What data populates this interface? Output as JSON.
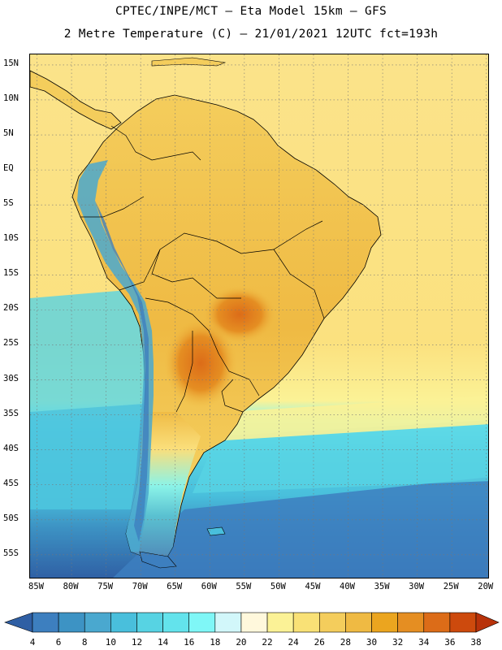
{
  "header": {
    "line1": "CPTEC/INPE/MCT –  Eta Model 15km – GFS",
    "line2": "2 Metre Temperature (C) – 21/01/2021 12UTC fct=193h"
  },
  "map": {
    "lat_labels": [
      "15N",
      "10N",
      "5N",
      "EQ",
      "5S",
      "10S",
      "15S",
      "20S",
      "25S",
      "30S",
      "35S",
      "40S",
      "45S",
      "50S",
      "55S"
    ],
    "lon_labels": [
      "85W",
      "80W",
      "75W",
      "70W",
      "65W",
      "60W",
      "55W",
      "50W",
      "45W",
      "40W",
      "35W",
      "30W",
      "25W",
      "20W"
    ],
    "lat_range": [
      16.5,
      -58.5
    ],
    "lon_range": [
      -86,
      -19.5
    ],
    "gridlines": "dotted"
  },
  "colorbar": {
    "levels": [
      "4",
      "6",
      "8",
      "10",
      "12",
      "14",
      "16",
      "18",
      "20",
      "22",
      "24",
      "26",
      "28",
      "30",
      "32",
      "34",
      "36",
      "38"
    ],
    "colors": [
      "#2f5fa4",
      "#3d7fbf",
      "#3d93c4",
      "#4aa8cf",
      "#49bfdc",
      "#57d3e3",
      "#63e3ec",
      "#7ff7f7",
      "#d2f7fa",
      "#fff8dc",
      "#fbf296",
      "#f9e176",
      "#f4cd5c",
      "#efba43",
      "#eba51f",
      "#e58e22",
      "#dc6c18",
      "#cd4a0d",
      "#b8320a"
    ]
  },
  "colors": {
    "ocean_warm": "#fbe07e",
    "ocean_hot": "#f4cd5c",
    "land_base": "#f1c54f",
    "ocean_cold": "#3d7fbf",
    "andes": "#49bfdc",
    "borders": "#000000"
  }
}
